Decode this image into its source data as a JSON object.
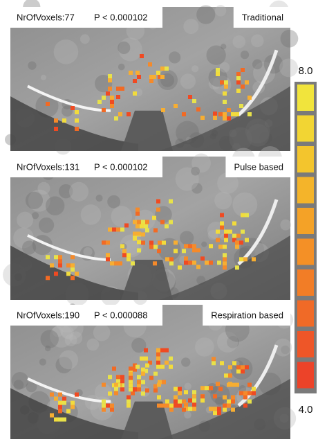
{
  "panels": [
    {
      "voxels": "NrOfVoxels:77",
      "p_value": "P < 0.000102",
      "condition": "Traditional"
    },
    {
      "voxels": "NrOfVoxels:131",
      "p_value": "P < 0.000102",
      "condition": "Pulse based"
    },
    {
      "voxels": "NrOfVoxels:190",
      "p_value": "P < 0.000088",
      "condition": "Respiration based"
    }
  ],
  "colorbar": {
    "max_label": "8.0",
    "min_label": "4.0"
  }
}
